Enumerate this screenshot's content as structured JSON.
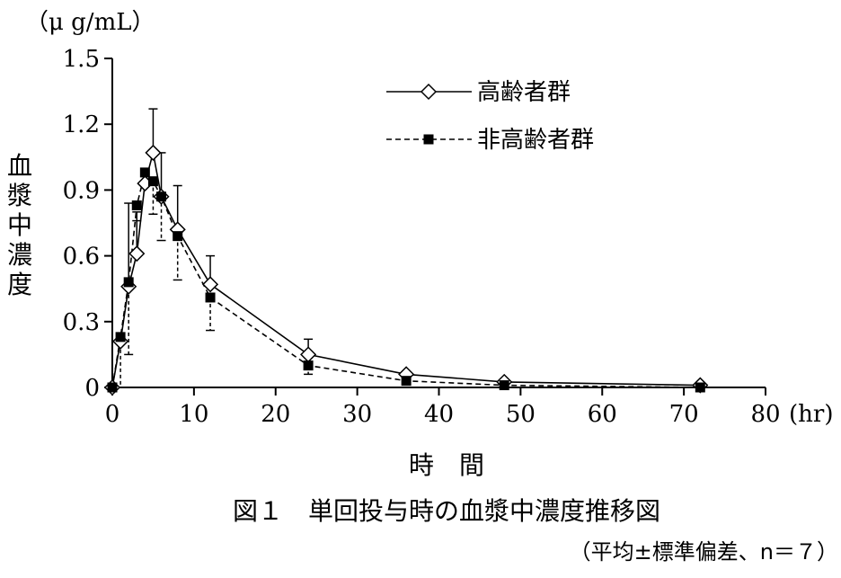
{
  "chart_data": {
    "type": "line",
    "y_unit": "（μ g/mL）",
    "x_unit": "(hr)",
    "ylabel": "血漿中濃度",
    "xlabel": "時　間",
    "caption": "図１　単回投与時の血漿中濃度推移図",
    "sub_caption": "（平均±標準偏差、n＝７）",
    "xlim": [
      0,
      80
    ],
    "ylim": [
      0,
      1.5
    ],
    "x_ticks": [
      "0",
      "10",
      "20",
      "30",
      "40",
      "50",
      "60",
      "70",
      "80"
    ],
    "y_ticks": [
      "0",
      "0.3",
      "0.6",
      "0.9",
      "1.2",
      "1.5"
    ],
    "grid": false,
    "legend_position": "top-right",
    "series": [
      {
        "name": "高齢者群",
        "marker": "open-diamond",
        "line": "solid",
        "points": [
          {
            "x": 0,
            "y": 0.0,
            "err": 0
          },
          {
            "x": 1,
            "y": 0.21,
            "err": 0
          },
          {
            "x": 2,
            "y": 0.46,
            "err": 0.38
          },
          {
            "x": 3,
            "y": 0.61,
            "err": 0.19
          },
          {
            "x": 4,
            "y": 0.93,
            "err": 0
          },
          {
            "x": 5,
            "y": 1.07,
            "err": 0.2
          },
          {
            "x": 6,
            "y": 0.87,
            "err": 0.2
          },
          {
            "x": 8,
            "y": 0.72,
            "err": 0.2
          },
          {
            "x": 12,
            "y": 0.47,
            "err": 0.13
          },
          {
            "x": 24,
            "y": 0.15,
            "err": 0.07
          },
          {
            "x": 36,
            "y": 0.06,
            "err": 0
          },
          {
            "x": 48,
            "y": 0.025,
            "err": 0
          },
          {
            "x": 72,
            "y": 0.01,
            "err": 0
          }
        ]
      },
      {
        "name": "非高齢者群",
        "marker": "filled-square",
        "line": "dashed",
        "points": [
          {
            "x": 0,
            "y": 0.0,
            "err": 0
          },
          {
            "x": 1,
            "y": 0.23,
            "err": 0.25
          },
          {
            "x": 2,
            "y": 0.48,
            "err": 0.33
          },
          {
            "x": 3,
            "y": 0.83,
            "err": 0.07
          },
          {
            "x": 4,
            "y": 0.98,
            "err": 0.06
          },
          {
            "x": 5,
            "y": 0.94,
            "err": 0.15
          },
          {
            "x": 6,
            "y": 0.87,
            "err": 0.2
          },
          {
            "x": 8,
            "y": 0.69,
            "err": 0.2
          },
          {
            "x": 12,
            "y": 0.41,
            "err": 0.15
          },
          {
            "x": 24,
            "y": 0.1,
            "err": 0.04
          },
          {
            "x": 36,
            "y": 0.03,
            "err": 0
          },
          {
            "x": 48,
            "y": 0.01,
            "err": 0
          },
          {
            "x": 72,
            "y": 0.0,
            "err": 0
          }
        ]
      }
    ]
  }
}
